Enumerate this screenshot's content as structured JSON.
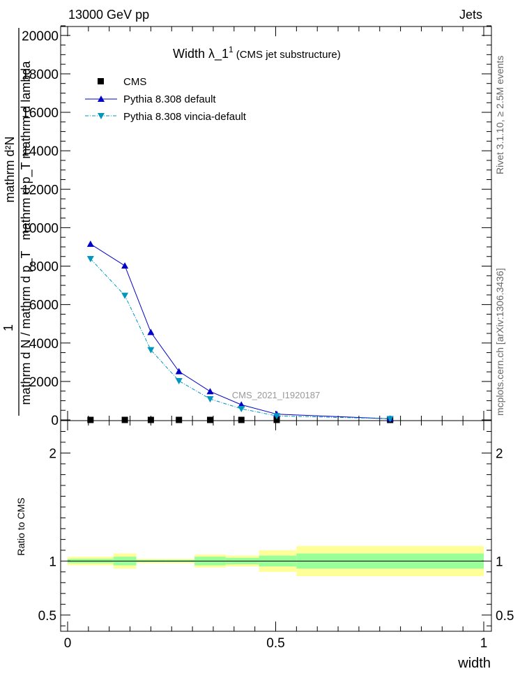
{
  "header": {
    "left": "13000 GeV pp",
    "right": "Jets"
  },
  "side_labels": {
    "rivet": "Rivet 3.1.10, ≥ 2.5M events",
    "mcplots": "mcplots.cern.ch [arXiv:1306.3436]"
  },
  "watermark": "CMS_2021_I1920187",
  "chart_data": [
    {
      "type": "line",
      "title_main": "Width λ_1",
      "title_sup": "1",
      "title_sub": "(CMS jet substructure)",
      "ylabel_numerator": "mathrm d²N",
      "ylabel_denominator": "mathrm d p_T mathrm d lambda",
      "ylabel_num_lower": "1",
      "ylabel_den_lower": "mathrm d N / mathrm d p_T",
      "xlim": [
        0,
        1
      ],
      "ylim": [
        0,
        20500
      ],
      "y_ticks": [
        0,
        2000,
        4000,
        6000,
        8000,
        10000,
        12000,
        14000,
        16000,
        18000,
        20000
      ],
      "legend_position": "top-left",
      "series": [
        {
          "name": "CMS",
          "style": "points",
          "marker": "square",
          "color": "#000000",
          "x": [
            0.055,
            0.1375,
            0.2,
            0.2675,
            0.3425,
            0.4175,
            0.5025,
            0.775
          ],
          "y": [
            0,
            0,
            0,
            0,
            0,
            0,
            0,
            0
          ]
        },
        {
          "name": "Pythia 8.308 default",
          "style": "solid",
          "marker": "triangle-up",
          "color": "#0000c8",
          "x": [
            0.055,
            0.1375,
            0.2,
            0.2675,
            0.3425,
            0.4175,
            0.5025,
            0.775
          ],
          "y": [
            9150,
            8020,
            4560,
            2520,
            1480,
            790,
            300,
            60
          ]
        },
        {
          "name": "Pythia 8.308 vincia-default",
          "style": "dashdot",
          "marker": "triangle-down",
          "color": "#0096bd",
          "x": [
            0.055,
            0.1375,
            0.2,
            0.2675,
            0.3425,
            0.4175,
            0.5025,
            0.775
          ],
          "y": [
            8380,
            6470,
            3640,
            2030,
            1090,
            580,
            210,
            60
          ]
        }
      ]
    },
    {
      "type": "area",
      "ylabel": "Ratio to CMS",
      "xlabel": "width",
      "xlim": [
        0,
        1
      ],
      "ylim": [
        0.35,
        2.3
      ],
      "y_ticks": [
        0.5,
        1,
        2
      ],
      "x_ticks": [
        0,
        0.5,
        1
      ],
      "bins": [
        {
          "x0": 0.0,
          "x1": 0.11,
          "inner": [
            0.98,
            1.02
          ],
          "outer": [
            0.96,
            1.04
          ]
        },
        {
          "x0": 0.11,
          "x1": 0.165,
          "inner": [
            0.96,
            1.04
          ],
          "outer": [
            0.93,
            1.07
          ]
        },
        {
          "x0": 0.165,
          "x1": 0.235,
          "inner": [
            0.99,
            1.01
          ],
          "outer": [
            0.98,
            1.02
          ]
        },
        {
          "x0": 0.235,
          "x1": 0.305,
          "inner": [
            0.99,
            1.01
          ],
          "outer": [
            0.98,
            1.02
          ]
        },
        {
          "x0": 0.305,
          "x1": 0.38,
          "inner": [
            0.96,
            1.04
          ],
          "outer": [
            0.94,
            1.06
          ]
        },
        {
          "x0": 0.38,
          "x1": 0.46,
          "inner": [
            0.97,
            1.03
          ],
          "outer": [
            0.95,
            1.05
          ]
        },
        {
          "x0": 0.46,
          "x1": 0.55,
          "inner": [
            0.95,
            1.05
          ],
          "outer": [
            0.9,
            1.1
          ]
        },
        {
          "x0": 0.55,
          "x1": 1.0,
          "inner": [
            0.93,
            1.07
          ],
          "outer": [
            0.86,
            1.14
          ]
        }
      ],
      "colors": {
        "inner": "#99ff99",
        "outer": "#ffff99",
        "line": "#000000"
      }
    }
  ]
}
